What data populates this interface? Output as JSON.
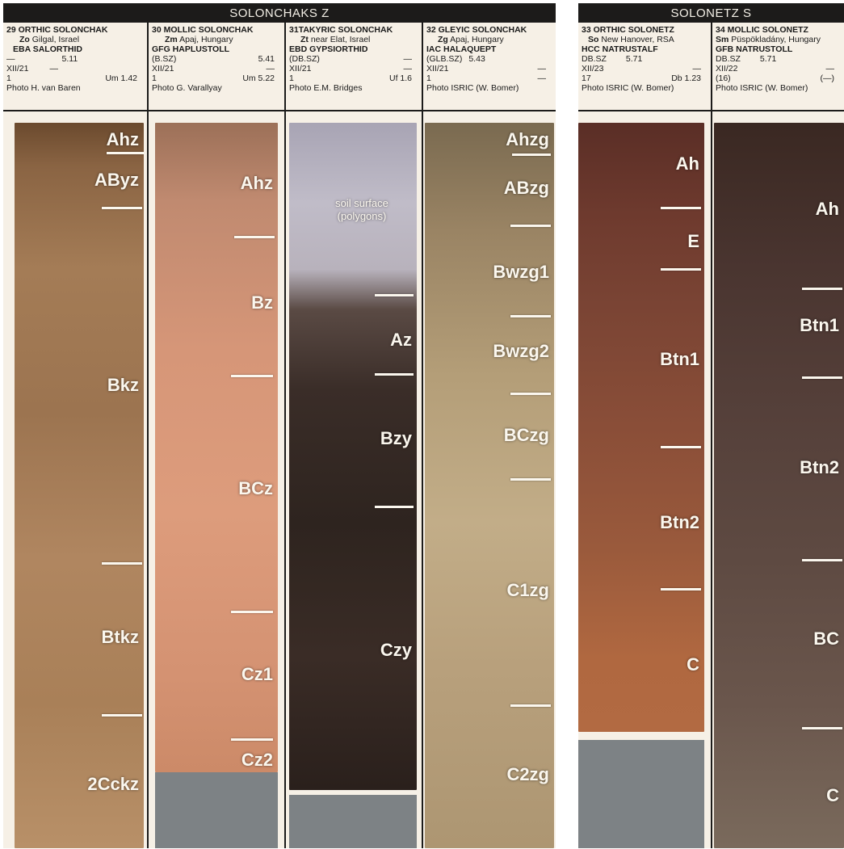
{
  "solonchaks": {
    "title": "SOLONCHAKS Z",
    "profiles": [
      {
        "number_name": "29 ORTHIC SOLONCHAK",
        "site": [
          "Zo",
          "Gilgal, Israel"
        ],
        "classification": "EBA SALORTHID",
        "row1": [
          "—",
          "5.11"
        ],
        "row2": [
          "XII/21",
          "—"
        ],
        "row3": [
          "1",
          "Um 1.42"
        ],
        "photo": "Photo H. van Baren",
        "horizons": [
          "Ahz",
          "AByz",
          "Bkz",
          "Btkz",
          "2Cckz"
        ]
      },
      {
        "number_name": "30 MOLLIC SOLONCHAK",
        "site": [
          "Zm",
          "Apaj, Hungary"
        ],
        "classification": "GFG HAPLUSTOLL",
        "row1": [
          "(B.SZ)",
          "5.41"
        ],
        "row2": [
          "XII/21",
          "—"
        ],
        "row3": [
          "1",
          "Um 5.22"
        ],
        "photo": "Photo G. Varallyay",
        "horizons": [
          "Ahz",
          "Bz",
          "BCz",
          "Cz1",
          "Cz2"
        ]
      },
      {
        "number_name": "31TAKYRIC SOLONCHAK",
        "site": [
          "Zt",
          "near Elat, Israel"
        ],
        "classification": "EBD GYPSIORTHID",
        "row1": [
          "(DB.SZ)",
          "—"
        ],
        "row2": [
          "XII/21",
          "—"
        ],
        "row3": [
          "1",
          "Uf 1.6"
        ],
        "photo": "Photo E.M. Bridges",
        "horizons": [
          "Az",
          "Bzy",
          "Czy"
        ],
        "note": [
          "soil surface",
          "(polygons)"
        ]
      },
      {
        "number_name": "32 GLEYIC SOLONCHAK",
        "site": [
          "Zg",
          "Apaj, Hungary"
        ],
        "classification": "IAC HALAQUEPT",
        "row1": [
          "(GLB.SZ)",
          "5.43"
        ],
        "row2": [
          "XII/21",
          "—"
        ],
        "row3": [
          "1",
          "—"
        ],
        "photo": "Photo ISRIC (W. Bomer)",
        "horizons": [
          "Ahzg",
          "ABzg",
          "Bwzg1",
          "Bwzg2",
          "BCzg",
          "C1zg",
          "C2zg"
        ]
      }
    ]
  },
  "solonetz": {
    "title": "SOLONETZ S",
    "profiles": [
      {
        "number_name": "33 ORTHIC SOLONETZ",
        "site": [
          "So",
          "New Hanover, RSA"
        ],
        "classification": "HCC NATRUSTALF",
        "row1": [
          "DB.SZ",
          "5.71"
        ],
        "row2": [
          "XII/23",
          "—"
        ],
        "row3": [
          "17",
          "Db 1.23"
        ],
        "photo": "Photo ISRIC (W. Bomer)",
        "horizons": [
          "Ah",
          "E",
          "Btn1",
          "Btn2",
          "C"
        ]
      },
      {
        "number_name": "34 MOLLIC SOLONETZ",
        "site": [
          "Sm",
          "Püspökladány, Hungary"
        ],
        "classification": "GFB NATRUSTOLL",
        "row1": [
          "DB.SZ",
          "5.71"
        ],
        "row2": [
          "XII/22",
          "—"
        ],
        "row3": [
          "(16)",
          "(—)"
        ],
        "photo": "Photo ISRIC (W. Bomer)",
        "horizons": [
          "Ah",
          "Btn1",
          "Btn2",
          "BC",
          "C"
        ]
      }
    ]
  },
  "colors": {
    "header_bg": "#1c1b1a",
    "paper": "#f6f0e6",
    "label": "#fbf7ee",
    "base_gray": "#7d8285"
  }
}
